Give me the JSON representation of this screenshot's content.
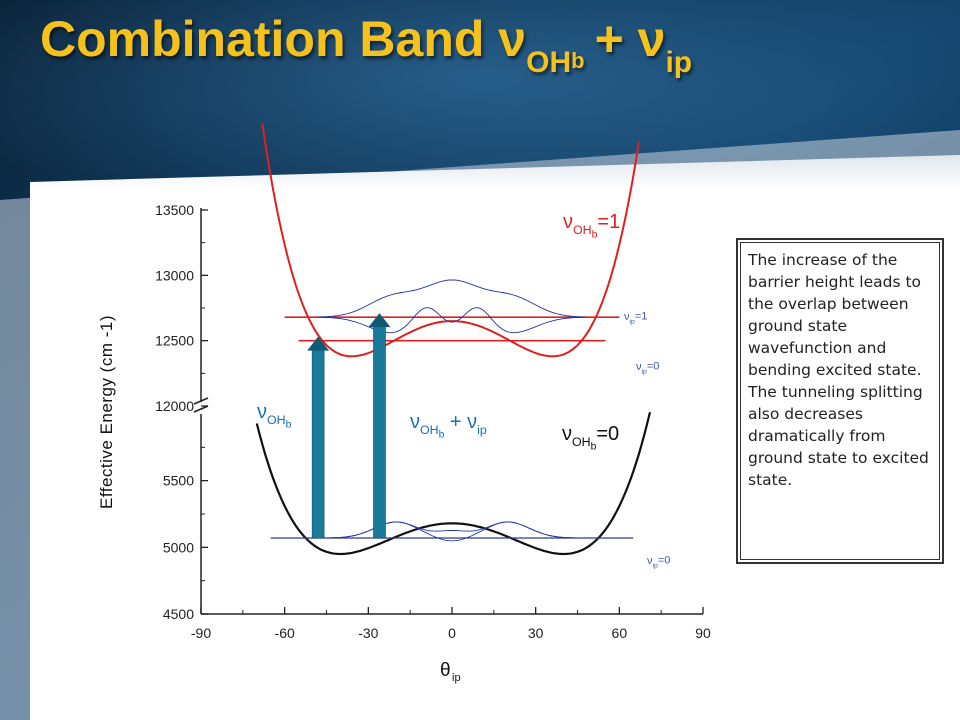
{
  "title": {
    "main": "Combination Band ν",
    "sub1": "OH",
    "sub2": "b",
    "plus": "+ ν",
    "sub3": "ip"
  },
  "info_text": "The increase of the barrier height leads to the overlap between ground state wavefunction and bending excited state. The tunneling splitting also decreases dramatically from ground state to excited state.",
  "colors": {
    "title": "#f5c21b",
    "excited_curve": "#e02020",
    "ground_curve": "#111111",
    "wavefunction": "#2233aa",
    "annotation_blue": "#1a6fb5",
    "arrow": "#1a7a9a"
  },
  "chart_data": {
    "type": "diagram",
    "ylabel": "Effective Energy (cm -1)",
    "xlabel": "θ",
    "xlabel_sub": "ip",
    "x_ticks": [
      "-90",
      "-60",
      "-30",
      "0",
      "30",
      "60",
      "90"
    ],
    "x_range": [
      -90,
      90
    ],
    "y_upper_ticks": [
      "12000",
      "12500",
      "13000",
      "13500"
    ],
    "y_upper_range": [
      12000,
      13500
    ],
    "y_lower_ticks": [
      "4500",
      "5000",
      "5500"
    ],
    "y_lower_range": [
      4500,
      6000
    ],
    "axis_break": true,
    "ground_curve": {
      "label": "ν",
      "sub": "OH",
      "subsub": "b",
      "suffix": "=0",
      "well_min": 4950,
      "barrier": 5180,
      "minima_x": [
        -40,
        40
      ]
    },
    "excited_curve": {
      "label": "ν",
      "sub": "OH",
      "subsub": "b",
      "suffix": "=1",
      "well_min": 12380,
      "barrier": 12650,
      "minima_x": [
        -36,
        36
      ]
    },
    "levels": [
      {
        "label": "ν",
        "sub": "ip",
        "suffix": "=0",
        "energy": 5070,
        "x_range": [
          -65,
          65
        ]
      },
      {
        "label": "ν",
        "sub": "ip",
        "suffix": "=0",
        "energy": 12500,
        "x_range": [
          -55,
          55
        ]
      },
      {
        "label": "ν",
        "sub": "ip",
        "suffix": "=1",
        "energy": 12680,
        "x_range": [
          -60,
          60
        ]
      }
    ],
    "transitions": [
      {
        "label": "ν",
        "sub": "OH",
        "subsub": "b",
        "suffix": "",
        "x": -48,
        "from": 5070,
        "to": 12500
      },
      {
        "label": "ν",
        "sub": "OH",
        "subsub": "b",
        "suffix": " + ν",
        "sub2": "ip",
        "x": -26,
        "from": 5070,
        "to": 12680
      }
    ]
  }
}
